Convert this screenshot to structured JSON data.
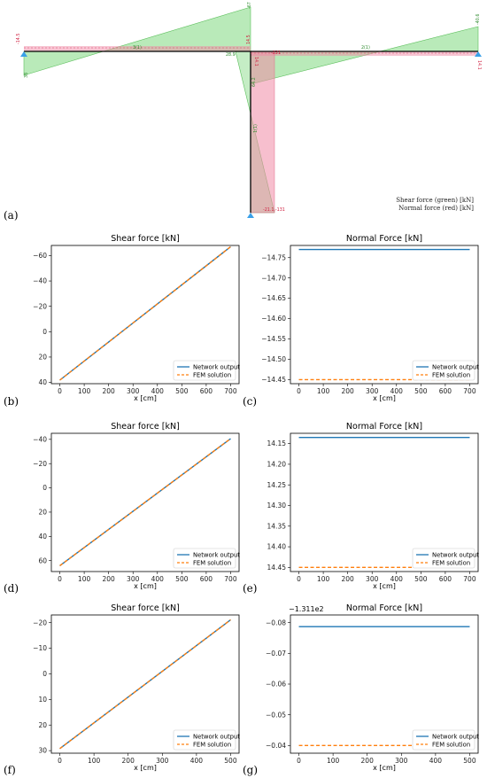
{
  "panel_labels": [
    "(a)",
    "(b)",
    "(c)",
    "(d)",
    "(e)",
    "(f)",
    "(g)"
  ],
  "frame": {
    "legend_lines": [
      "Shear force (green) [kN]",
      "Normal force (red) [kN]"
    ],
    "colors": {
      "shear": "#7fd87f",
      "normal": "#f08aa6",
      "member": "#000000",
      "support": "#3aa0e8"
    },
    "annotations": {
      "left_beam_start": "-14.5",
      "left_beam_start_shear": "38",
      "left_beam_end_shear": "-67",
      "left_beam_mid": "3(1)",
      "joint_left": "28.9",
      "joint_top": "14.5",
      "joint_normal": "14.1",
      "joint_normal2": "-131",
      "right_beam_mid": "2(1)",
      "right_beam_end_shear": "-40.6",
      "right_beam_end": "14.1",
      "column_shear": "64.2",
      "column_mid": "1(1)",
      "column_bottom": "-21.1,-131"
    }
  },
  "chart_data": [
    {
      "id": "b",
      "type": "line",
      "title": "Shear force [kN]",
      "xlabel": "x [cm]",
      "ylabel": "",
      "xlim": [
        0,
        700
      ],
      "ylim": [
        41,
        -68
      ],
      "yinverted": true,
      "xticks": [
        0,
        100,
        200,
        300,
        400,
        500,
        600,
        700
      ],
      "yticks": [
        -60,
        -40,
        -20,
        0,
        20,
        40
      ],
      "series": [
        {
          "name": "Network output",
          "color": "#1f77b4",
          "dash": "solid",
          "x": [
            0,
            700
          ],
          "y": [
            38.2,
            -67.0
          ]
        },
        {
          "name": "FEM solution",
          "color": "#ff7f0e",
          "dash": "dashed",
          "x": [
            0,
            700
          ],
          "y": [
            38.2,
            -67.0
          ]
        }
      ],
      "legend": "bottom-right",
      "ytick_offset": ""
    },
    {
      "id": "c",
      "type": "line",
      "title": "Normal Force [kN]",
      "xlabel": "x [cm]",
      "ylabel": "",
      "xlim": [
        0,
        700
      ],
      "ylim": [
        -14.44,
        -14.78
      ],
      "yinverted": true,
      "xticks": [
        0,
        100,
        200,
        300,
        400,
        500,
        600,
        700
      ],
      "yticks": [
        -14.75,
        -14.7,
        -14.65,
        -14.6,
        -14.55,
        -14.5,
        -14.45
      ],
      "series": [
        {
          "name": "Network output",
          "color": "#1f77b4",
          "dash": "solid",
          "x": [
            0,
            700
          ],
          "y": [
            -14.77,
            -14.77
          ]
        },
        {
          "name": "FEM solution",
          "color": "#ff7f0e",
          "dash": "dashed",
          "x": [
            0,
            700
          ],
          "y": [
            -14.45,
            -14.45
          ]
        }
      ],
      "legend": "bottom-right",
      "ytick_offset": ""
    },
    {
      "id": "d",
      "type": "line",
      "title": "Shear force [kN]",
      "xlabel": "x [cm]",
      "ylabel": "",
      "xlim": [
        0,
        700
      ],
      "ylim": [
        69,
        -45
      ],
      "yinverted": true,
      "xticks": [
        0,
        100,
        200,
        300,
        400,
        500,
        600,
        700
      ],
      "yticks": [
        -40,
        -20,
        0,
        20,
        40,
        60
      ],
      "series": [
        {
          "name": "Network output",
          "color": "#1f77b4",
          "dash": "solid",
          "x": [
            0,
            700
          ],
          "y": [
            64.2,
            -40.6
          ]
        },
        {
          "name": "FEM solution",
          "color": "#ff7f0e",
          "dash": "dashed",
          "x": [
            0,
            700
          ],
          "y": [
            64.2,
            -40.6
          ]
        }
      ],
      "legend": "bottom-right",
      "ytick_offset": ""
    },
    {
      "id": "e",
      "type": "line",
      "title": "Normal Force [kN]",
      "xlabel": "x [cm]",
      "ylabel": "",
      "xlim": [
        0,
        700
      ],
      "ylim": [
        14.46,
        14.125
      ],
      "yinverted": true,
      "xticks": [
        0,
        100,
        200,
        300,
        400,
        500,
        600,
        700
      ],
      "yticks": [
        14.15,
        14.2,
        14.25,
        14.3,
        14.35,
        14.4,
        14.45
      ],
      "series": [
        {
          "name": "Network output",
          "color": "#1f77b4",
          "dash": "solid",
          "x": [
            0,
            700
          ],
          "y": [
            14.135,
            14.135
          ]
        },
        {
          "name": "FEM solution",
          "color": "#ff7f0e",
          "dash": "dashed",
          "x": [
            0,
            700
          ],
          "y": [
            14.45,
            14.45
          ]
        }
      ],
      "legend": "bottom-right",
      "ytick_offset": ""
    },
    {
      "id": "f",
      "type": "line",
      "title": "Shear force [kN]",
      "xlabel": "x [cm]",
      "ylabel": "",
      "xlim": [
        0,
        500
      ],
      "ylim": [
        31,
        -23
      ],
      "yinverted": true,
      "xticks": [
        0,
        100,
        200,
        300,
        400,
        500
      ],
      "yticks": [
        -20,
        -10,
        0,
        10,
        20,
        30
      ],
      "series": [
        {
          "name": "Network output",
          "color": "#1f77b4",
          "dash": "solid",
          "x": [
            0,
            500
          ],
          "y": [
            29.2,
            -21.1
          ]
        },
        {
          "name": "FEM solution",
          "color": "#ff7f0e",
          "dash": "dashed",
          "x": [
            0,
            500
          ],
          "y": [
            29.2,
            -21.1
          ]
        }
      ],
      "legend": "bottom-right",
      "ytick_offset": ""
    },
    {
      "id": "g",
      "type": "line",
      "title": "Normal Force [kN]",
      "xlabel": "x [cm]",
      "ylabel": "",
      "xlim": [
        0,
        500
      ],
      "ylim": [
        -0.0375,
        -0.0825
      ],
      "yinverted": true,
      "xticks": [
        0,
        100,
        200,
        300,
        400,
        500
      ],
      "yticks": [
        -0.08,
        -0.07,
        -0.06,
        -0.05,
        -0.04
      ],
      "series": [
        {
          "name": "Network output",
          "color": "#1f77b4",
          "dash": "solid",
          "x": [
            0,
            500
          ],
          "y": [
            -0.0787,
            -0.0787
          ]
        },
        {
          "name": "FEM solution",
          "color": "#ff7f0e",
          "dash": "dashed",
          "x": [
            0,
            500
          ],
          "y": [
            -0.04,
            -0.04
          ]
        }
      ],
      "legend": "bottom-right",
      "ytick_offset": "−1.311e2"
    }
  ]
}
